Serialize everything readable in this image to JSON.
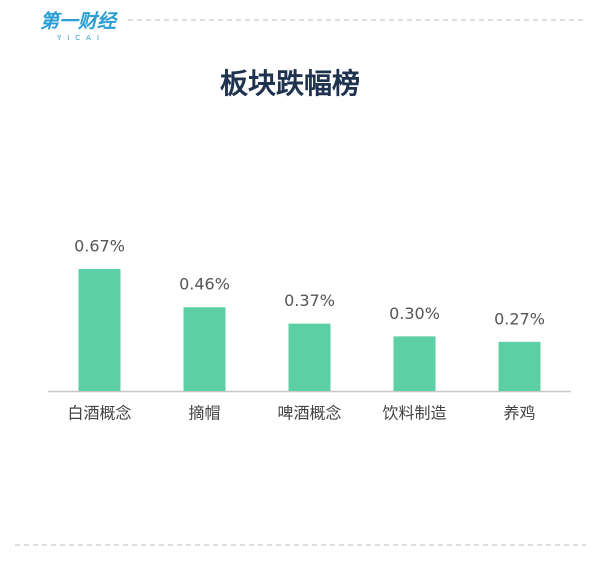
{
  "header": {
    "logo": "第一财经",
    "logo_sub": "YICAI"
  },
  "chart_data": {
    "type": "bar",
    "title": "板块跌幅榜",
    "categories": [
      "白酒概念",
      "摘帽",
      "啤酒概念",
      "饮料制造",
      "养鸡"
    ],
    "values": [
      0.67,
      0.46,
      0.37,
      0.3,
      0.27
    ],
    "value_labels": [
      "0.67%",
      "0.46%",
      "0.37%",
      "0.30%",
      "0.27%"
    ],
    "color": "#5dcfa5"
  }
}
